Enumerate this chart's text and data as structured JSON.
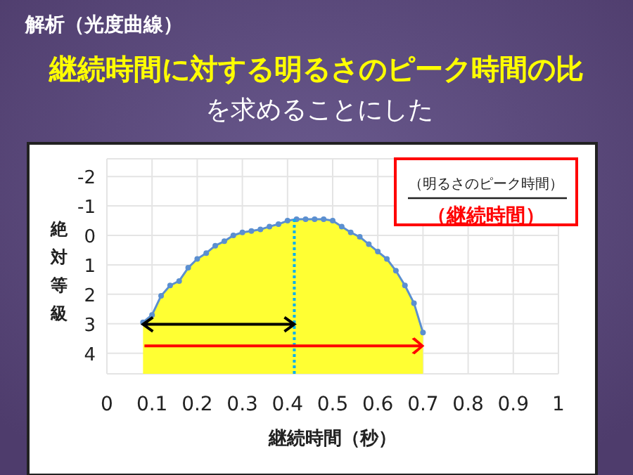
{
  "chart_data": {
    "type": "line",
    "title": "解析（光度曲線）",
    "subtitle": "継続時間に対する明るさのピーク時間の比",
    "xlabel": "継続時間（秒）",
    "ylabel": "絶対等級",
    "annotations": [
      "を求めることにした",
      "（明るさのピーク時間）",
      "（継続時間）"
    ],
    "x": [
      0.08,
      0.1,
      0.12,
      0.14,
      0.16,
      0.18,
      0.2,
      0.22,
      0.24,
      0.26,
      0.28,
      0.3,
      0.32,
      0.34,
      0.36,
      0.38,
      0.4,
      0.42,
      0.44,
      0.46,
      0.48,
      0.5,
      0.52,
      0.54,
      0.56,
      0.58,
      0.6,
      0.62,
      0.64,
      0.66,
      0.68,
      0.7
    ],
    "series": [
      {
        "color": "#5b8fd0",
        "values": [
          2.95,
          2.7,
          2.05,
          1.7,
          1.55,
          1.1,
          0.8,
          0.6,
          0.35,
          0.2,
          0.0,
          -0.1,
          -0.15,
          -0.2,
          -0.3,
          -0.38,
          -0.5,
          -0.55,
          -0.55,
          -0.55,
          -0.55,
          -0.5,
          -0.3,
          -0.1,
          0.05,
          0.3,
          0.55,
          0.8,
          1.2,
          1.7,
          2.3,
          3.3
        ]
      }
    ],
    "marker": "circle",
    "xlim": [
      0,
      1
    ],
    "xticks": [
      0,
      0.1,
      0.2,
      0.3,
      0.4,
      0.5,
      0.6,
      0.7,
      0.8,
      0.9,
      1
    ],
    "ylim": [
      4.7,
      -2.6
    ],
    "yticks": [
      -2,
      -1,
      0,
      1,
      2,
      3,
      4
    ],
    "grid": true,
    "ref_lines": [
      {
        "axis": "x",
        "value": 0.415,
        "color": "#00b0f0",
        "line_style": "dotted"
      }
    ]
  }
}
